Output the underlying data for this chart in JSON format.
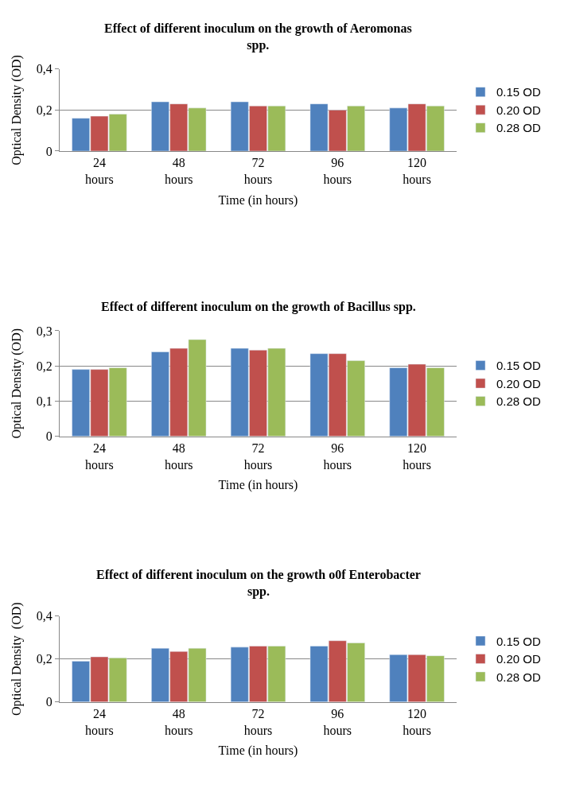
{
  "chart_data": [
    {
      "type": "bar",
      "title": "Effect of different inoculum on the growth of Aeromonas spp.",
      "xlabel": "Time (in hours)",
      "ylabel": "Optical Density (OD)",
      "categories": [
        "24 hours",
        "48 hours",
        "72 hours",
        "96 hours",
        "120 hours"
      ],
      "series": [
        {
          "name": "0.15 OD",
          "color": "#4f81bd",
          "values": [
            0.16,
            0.24,
            0.24,
            0.23,
            0.21
          ]
        },
        {
          "name": "0.20 OD",
          "color": "#c0504d",
          "values": [
            0.17,
            0.23,
            0.22,
            0.2,
            0.23
          ]
        },
        {
          "name": "0.28 OD",
          "color": "#9bbb59",
          "values": [
            0.18,
            0.21,
            0.22,
            0.22,
            0.22
          ]
        }
      ],
      "ylim": [
        0,
        0.4
      ],
      "yticks": [
        0,
        {
          "value": 0.2,
          "label": "0,2"
        },
        {
          "value": 0.4,
          "label": "0,4"
        }
      ],
      "grid": "y",
      "legend": "right"
    },
    {
      "type": "bar",
      "title": "Effect of different inoculum on the growth of Bacillus spp.",
      "xlabel": "Time (in hours)",
      "ylabel": "Optical Density (OD)",
      "categories": [
        "24 hours",
        "48 hours",
        "72 hours",
        "96 hours",
        "120 hours"
      ],
      "series": [
        {
          "name": "0.15 OD",
          "color": "#4f81bd",
          "values": [
            0.19,
            0.24,
            0.25,
            0.235,
            0.195
          ]
        },
        {
          "name": "0.20 OD",
          "color": "#c0504d",
          "values": [
            0.19,
            0.25,
            0.245,
            0.235,
            0.205
          ]
        },
        {
          "name": "0.28 OD",
          "color": "#9bbb59",
          "values": [
            0.195,
            0.275,
            0.25,
            0.215,
            0.195
          ]
        }
      ],
      "ylim": [
        0,
        0.3
      ],
      "yticks": [
        0,
        {
          "value": 0.1,
          "label": "0,1"
        },
        {
          "value": 0.2,
          "label": "0,2"
        },
        {
          "value": 0.3,
          "label": "0,3"
        }
      ],
      "grid": "y",
      "legend": "right"
    },
    {
      "type": "bar",
      "title": "Effect of different inoculum on the growth o0f Enterobacter spp.",
      "xlabel": "Time (in hours)",
      "ylabel": "Optical Density  (OD)",
      "categories": [
        "24 hours",
        "48 hours",
        "72 hours",
        "96 hours",
        "120 hours"
      ],
      "series": [
        {
          "name": "0.15 OD",
          "color": "#4f81bd",
          "values": [
            0.19,
            0.25,
            0.255,
            0.26,
            0.22
          ]
        },
        {
          "name": "0.20 OD",
          "color": "#c0504d",
          "values": [
            0.21,
            0.235,
            0.26,
            0.285,
            0.22
          ]
        },
        {
          "name": "0.28 OD",
          "color": "#9bbb59",
          "values": [
            0.205,
            0.25,
            0.26,
            0.275,
            0.215
          ]
        }
      ],
      "ylim": [
        0,
        0.4
      ],
      "yticks": [
        0,
        {
          "value": 0.2,
          "label": "0,2"
        },
        {
          "value": 0.4,
          "label": "0,4"
        }
      ],
      "grid": "y",
      "legend": "right"
    }
  ]
}
